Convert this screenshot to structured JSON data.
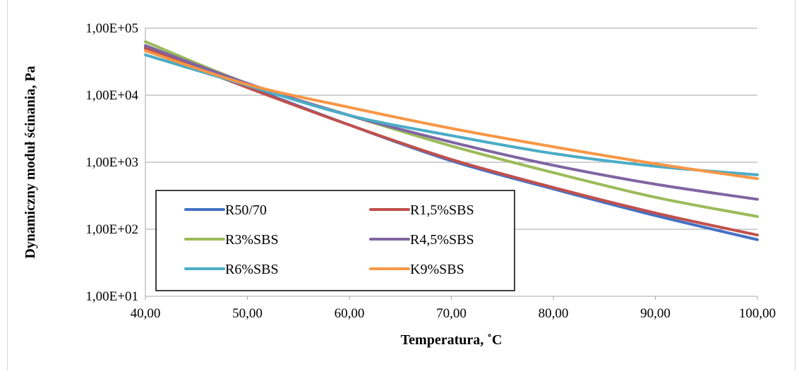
{
  "chart_data": {
    "type": "line",
    "title": "",
    "xlabel": "Temperatura, ˚C",
    "ylabel": "Dynamiczny moduł ścinania, Pa",
    "xlim": [
      40,
      100
    ],
    "ylim": [
      10,
      100000
    ],
    "yscale": "log",
    "grid": "horizontal",
    "legend_position": "bottom-left-inside",
    "x_tick_labels": [
      "40,00",
      "50,00",
      "60,00",
      "70,00",
      "80,00",
      "90,00",
      "100,00"
    ],
    "x_ticks": [
      40,
      50,
      60,
      70,
      80,
      90,
      100
    ],
    "y_tick_labels": [
      "1,00E+01",
      "1,00E+02",
      "1,00E+03",
      "1,00E+04",
      "1,00E+05"
    ],
    "y_ticks": [
      10,
      100,
      1000,
      10000,
      100000
    ],
    "x": [
      40,
      50,
      60,
      70,
      80,
      90,
      100
    ],
    "series": [
      {
        "name": "R50/70",
        "color": "#4472c4",
        "values": [
          52000,
          13500,
          3600,
          1050,
          400,
          160,
          70
        ]
      },
      {
        "name": "R1,5%SBS",
        "color": "#c0504d",
        "values": [
          50000,
          13000,
          3600,
          1100,
          420,
          175,
          82
        ]
      },
      {
        "name": "R3%SBS",
        "color": "#9bbb59",
        "values": [
          63000,
          15000,
          5000,
          1750,
          700,
          300,
          155
        ]
      },
      {
        "name": "R4,5%SBS",
        "color": "#8064a2",
        "values": [
          55000,
          15000,
          5000,
          2000,
          900,
          470,
          280
        ]
      },
      {
        "name": "R6%SBS",
        "color": "#4bacc6",
        "values": [
          40000,
          14000,
          5000,
          2500,
          1350,
          870,
          650
        ]
      },
      {
        "name": "K9%SBS",
        "color": "#f79646",
        "values": [
          46000,
          14500,
          6600,
          3200,
          1700,
          950,
          570
        ]
      }
    ]
  }
}
